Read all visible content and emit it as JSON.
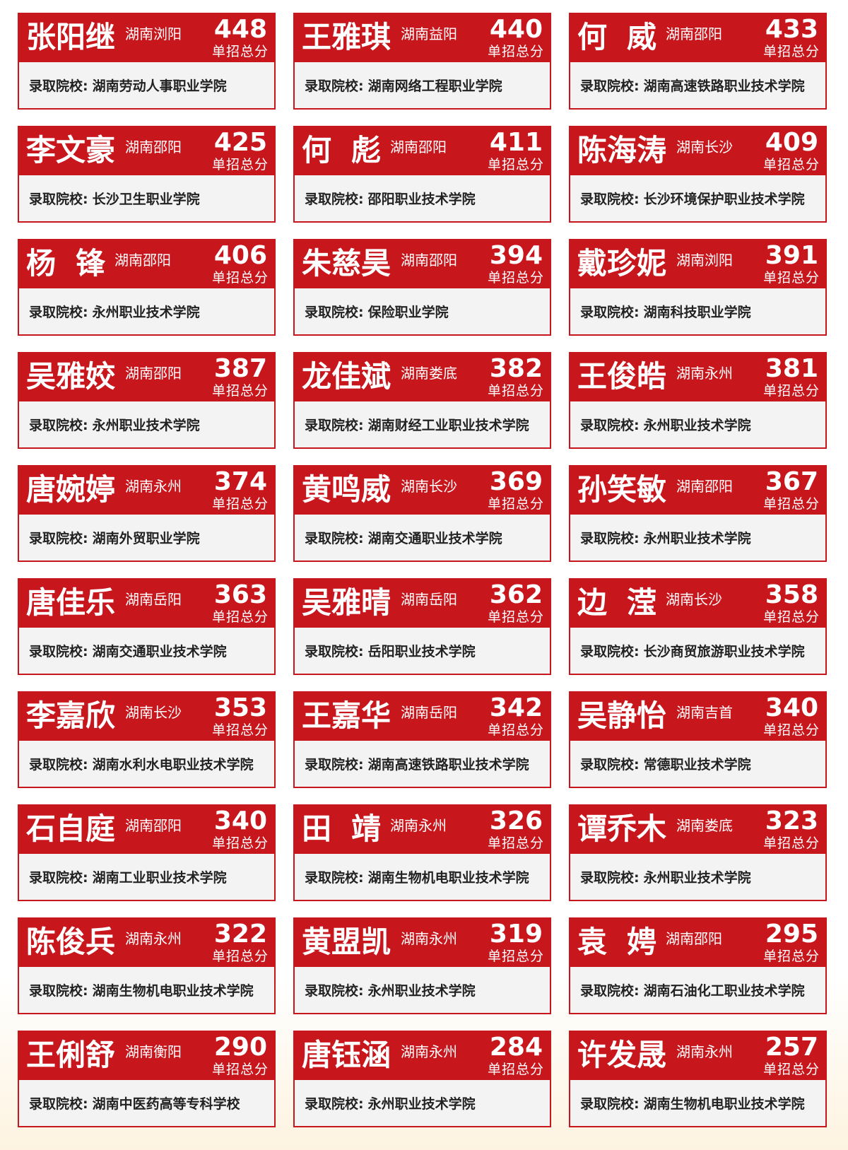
{
  "score_label": "单招总分",
  "school_prefix": "录取院校:",
  "cards": [
    {
      "name": "张阳继",
      "region": "湖南浏阳",
      "score": 448,
      "school": "湖南劳动人事职业学院"
    },
    {
      "name": "王雅琪",
      "region": "湖南益阳",
      "score": 440,
      "school": "湖南网络工程职业学院"
    },
    {
      "name": "何威",
      "region": "湖南邵阳",
      "score": 433,
      "school": "湖南高速铁路职业技术学院"
    },
    {
      "name": "李文豪",
      "region": "湖南邵阳",
      "score": 425,
      "school": "长沙卫生职业学院"
    },
    {
      "name": "何彪",
      "region": "湖南邵阳",
      "score": 411,
      "school": "邵阳职业技术学院"
    },
    {
      "name": "陈海涛",
      "region": "湖南长沙",
      "score": 409,
      "school": "长沙环境保护职业技术学院"
    },
    {
      "name": "杨锋",
      "region": "湖南邵阳",
      "score": 406,
      "school": "永州职业技术学院"
    },
    {
      "name": "朱慈昊",
      "region": "湖南邵阳",
      "score": 394,
      "school": "保险职业学院"
    },
    {
      "name": "戴珍妮",
      "region": "湖南浏阳",
      "score": 391,
      "school": "湖南科技职业学院"
    },
    {
      "name": "吴雅姣",
      "region": "湖南邵阳",
      "score": 387,
      "school": "永州职业技术学院"
    },
    {
      "name": "龙佳斌",
      "region": "湖南娄底",
      "score": 382,
      "school": "湖南财经工业职业技术学院"
    },
    {
      "name": "王俊皓",
      "region": "湖南永州",
      "score": 381,
      "school": "永州职业技术学院"
    },
    {
      "name": "唐婉婷",
      "region": "湖南永州",
      "score": 374,
      "school": "湖南外贸职业学院"
    },
    {
      "name": "黄鸣威",
      "region": "湖南长沙",
      "score": 369,
      "school": "湖南交通职业技术学院"
    },
    {
      "name": "孙笑敏",
      "region": "湖南邵阳",
      "score": 367,
      "school": "永州职业技术学院"
    },
    {
      "name": "唐佳乐",
      "region": "湖南岳阳",
      "score": 363,
      "school": "湖南交通职业技术学院"
    },
    {
      "name": "吴雅晴",
      "region": "湖南岳阳",
      "score": 362,
      "school": "岳阳职业技术学院"
    },
    {
      "name": "边滢",
      "region": "湖南长沙",
      "score": 358,
      "school": "长沙商贸旅游职业技术学院"
    },
    {
      "name": "李嘉欣",
      "region": "湖南长沙",
      "score": 353,
      "school": "湖南水利水电职业技术学院"
    },
    {
      "name": "王嘉华",
      "region": "湖南岳阳",
      "score": 342,
      "school": "湖南高速铁路职业技术学院"
    },
    {
      "name": "吴静怡",
      "region": "湖南吉首",
      "score": 340,
      "school": "常德职业技术学院"
    },
    {
      "name": "石自庭",
      "region": "湖南邵阳",
      "score": 340,
      "school": "湖南工业职业技术学院"
    },
    {
      "name": "田靖",
      "region": "湖南永州",
      "score": 326,
      "school": "湖南生物机电职业技术学院"
    },
    {
      "name": "谭乔木",
      "region": "湖南娄底",
      "score": 323,
      "school": "永州职业技术学院"
    },
    {
      "name": "陈俊兵",
      "region": "湖南永州",
      "score": 322,
      "school": "湖南生物机电职业技术学院"
    },
    {
      "name": "黄盟凯",
      "region": "湖南永州",
      "score": 319,
      "school": "永州职业技术学院"
    },
    {
      "name": "袁娉",
      "region": "湖南邵阳",
      "score": 295,
      "school": "湖南石油化工职业技术学院"
    },
    {
      "name": "王俐舒",
      "region": "湖南衡阳",
      "score": 290,
      "school": "湖南中医药高等专科学校"
    },
    {
      "name": "唐钰涵",
      "region": "湖南永州",
      "score": 284,
      "school": "永州职业技术学院"
    },
    {
      "name": "许发晟",
      "region": "湖南永州",
      "score": 257,
      "school": "湖南生物机电职业技术学院"
    }
  ]
}
